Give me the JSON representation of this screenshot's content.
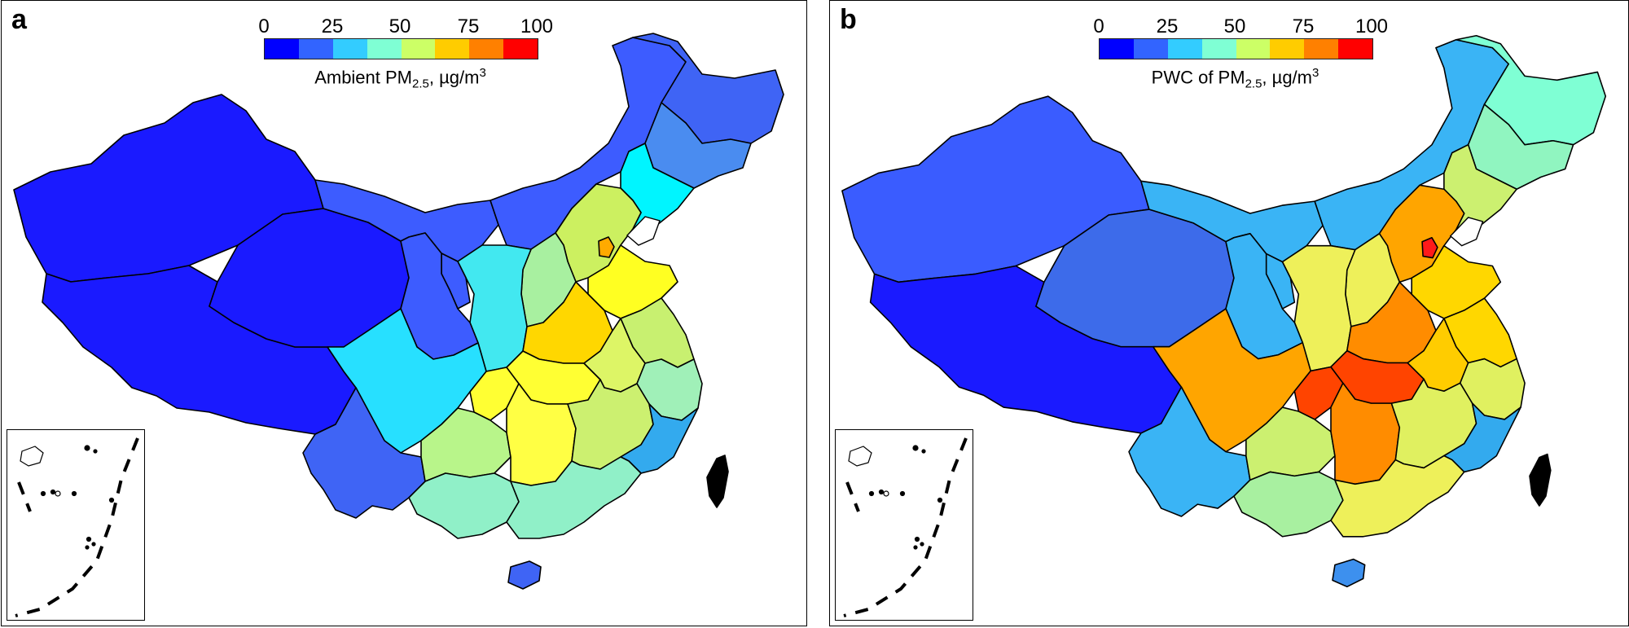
{
  "panels": [
    {
      "letter": "a",
      "legend": {
        "ticks": [
          "0",
          "25",
          "50",
          "75",
          "100"
        ],
        "title_pre": "Ambient PM",
        "title_sub": "2.5",
        "title_mid": ", µg/m",
        "title_sup": "3",
        "title_post": ""
      },
      "colorbar": [
        "#0000ff",
        "#3264ff",
        "#33ccff",
        "#7fffd4",
        "#ccff66",
        "#ffcc00",
        "#ff8000",
        "#ff0000"
      ],
      "regions": {
        "xinjiang": "#1a1aff",
        "tibet": "#1a1aff",
        "qinghai": "#1a1aff",
        "inner_mongolia_w": "#3d5cff",
        "inner_mongolia_e": "#3d5cff",
        "gansu": "#3d5cff",
        "heilongjiang": "#3f64f5",
        "jilin": "#4a8cf0",
        "liaoning": "#00f5ff",
        "beijing": "#ffaa00",
        "hebei": "#ccf060",
        "shanxi": "#a8f0a0",
        "shaanxi": "#42e8f0",
        "ningxia": "#3d5cff",
        "sichuan": "#27e0ff",
        "chongqing": "#ffff33",
        "henan": "#ffd700",
        "shandong": "#ffff22",
        "hubei": "#ffff33",
        "anhui": "#ddf566",
        "jiangsu": "#c8f070",
        "hunan": "#ffff44",
        "jiangxi": "#ccf070",
        "zhejiang": "#a0f0b8",
        "fujian": "#33aaee",
        "guangdong": "#90f0c8",
        "guangxi": "#90f0c8",
        "guizhou": "#b8f58a",
        "yunnan": "#3f64f5",
        "hainan": "#3f64f5",
        "taiwan": "#000000"
      }
    },
    {
      "letter": "b",
      "legend": {
        "ticks": [
          "0",
          "25",
          "50",
          "75",
          "100"
        ],
        "title_pre": "PWC of PM",
        "title_sub": "2.5",
        "title_mid": ", µg/m",
        "title_sup": "3",
        "title_post": ""
      },
      "colorbar": [
        "#0000ff",
        "#3264ff",
        "#33ccff",
        "#7fffd4",
        "#ccff66",
        "#ffcc00",
        "#ff8000",
        "#ff0000"
      ],
      "regions": {
        "xinjiang": "#3a5cff",
        "tibet": "#1a1aff",
        "qinghai": "#3d6bea",
        "inner_mongolia_w": "#3ab4f5",
        "inner_mongolia_e": "#3ab4f5",
        "gansu": "#3ab4f5",
        "heilongjiang": "#7fffd4",
        "jilin": "#90f5c0",
        "liaoning": "#ccf070",
        "beijing": "#ff1a1a",
        "hebei": "#ffa500",
        "shanxi": "#eef05a",
        "shaanxi": "#eef05a",
        "ningxia": "#3ab4f5",
        "sichuan": "#ffa500",
        "chongqing": "#ff4400",
        "henan": "#ff8c00",
        "shandong": "#ffd700",
        "hubei": "#ff4400",
        "anhui": "#ffcc00",
        "jiangsu": "#ffd700",
        "hunan": "#ff8c00",
        "jiangxi": "#e0f060",
        "zhejiang": "#e0f060",
        "fujian": "#33aaee",
        "guangdong": "#eef05a",
        "guangxi": "#a8f0a0",
        "guizhou": "#ccf070",
        "yunnan": "#3ab4f5",
        "hainan": "#3d90ee",
        "taiwan": "#000000"
      }
    }
  ]
}
